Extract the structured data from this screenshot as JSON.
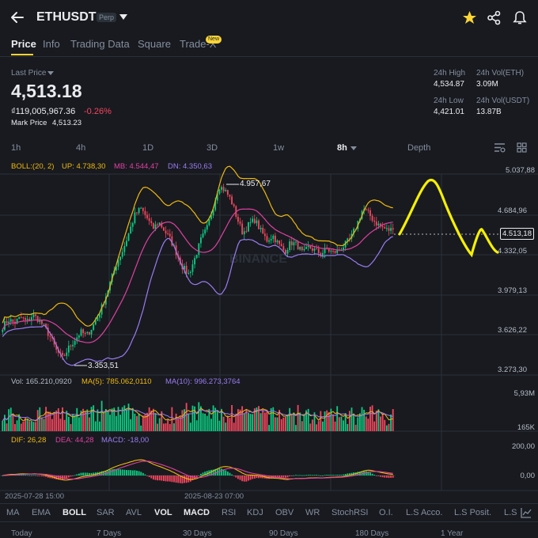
{
  "header": {
    "symbol": "ETHUSDT",
    "badge": "Perp"
  },
  "tabs": [
    "Price",
    "Info",
    "Trading Data",
    "Square",
    "Trade-X"
  ],
  "tab_badge": "New",
  "price_block": {
    "label": "Last Price",
    "last_price": "4,513.18",
    "converted": "₫119,005,967.36",
    "change": "-0.26%",
    "mark_label": "Mark Price",
    "mark_value": "4,513.23"
  },
  "stats": {
    "high_label": "24h High",
    "high": "4,534.87",
    "vol_eth_label": "24h Vol(ETH)",
    "vol_eth": "3.09M",
    "low_label": "24h Low",
    "low": "4,421.01",
    "vol_usdt_label": "24h Vol(USDT)",
    "vol_usdt": "13.87B"
  },
  "timeframes": [
    "1h",
    "4h",
    "1D",
    "3D",
    "1w",
    "8h",
    "Depth"
  ],
  "boll_legend": {
    "name": "BOLL:(20, 2)",
    "up": "UP: 4.738,30",
    "mb": "MB: 4.544,47",
    "dn": "DN: 4.350,63"
  },
  "price_axis": [
    "5.037,88",
    "4.684,96",
    "4.332,05",
    "3.979,13",
    "3.626,22",
    "3.273,30"
  ],
  "current_price_tag": "4.513,18",
  "annotations": {
    "high": "4.957,67",
    "low": "3.353,51"
  },
  "vol_legend": {
    "vol": "Vol: 165.210,0920",
    "ma5": "MA(5): 785.062,0110",
    "ma10": "MA(10): 996.273,3764"
  },
  "vol_axis": [
    "5,93M",
    "165K"
  ],
  "macd_legend": {
    "dif": "DIF: 26,28",
    "dea": "DEA: 44,28",
    "macd": "MACD: -18,00"
  },
  "macd_axis": [
    "200,00",
    "0,00"
  ],
  "date_labels": [
    "2025-07-28 15:00",
    "2025-08-23 07:00"
  ],
  "watermark": "BINANCE",
  "indicators": [
    "MA",
    "EMA",
    "BOLL",
    "SAR",
    "AVL",
    "VOL",
    "MACD",
    "RSI",
    "KDJ",
    "OBV",
    "WR",
    "StochRSI",
    "O.I.",
    "L.S Acco.",
    "L.S Posit.",
    "L.S"
  ],
  "periods": [
    "Today",
    "7 Days",
    "30 Days",
    "90 Days",
    "180 Days",
    "1 Year"
  ],
  "colors": {
    "up": "#0ecb81",
    "down": "#f6465d",
    "accent": "#fcd535",
    "boll_up": "#f0b90b",
    "boll_mb": "#e040a0",
    "boll_dn": "#9b7cf0",
    "drawing": "#f5f000"
  },
  "chart_data": {
    "type": "candlestick",
    "timeframe": "8h",
    "close_path": [
      3660,
      3720,
      3690,
      3740,
      3700,
      3760,
      3720,
      3650,
      3560,
      3440,
      3380,
      3470,
      3540,
      3610,
      3580,
      3660,
      3760,
      3900,
      4060,
      4220,
      4330,
      4480,
      4640,
      4700,
      4620,
      4520,
      4580,
      4500,
      4420,
      4300,
      4180,
      4120,
      4260,
      4420,
      4520,
      4700,
      4900,
      4860,
      4780,
      4620,
      4480,
      4560,
      4600,
      4500,
      4420,
      4460,
      4380,
      4320,
      4400,
      4380,
      4300,
      4360,
      4330,
      4300,
      4340,
      4310,
      4330,
      4380,
      4440,
      4560,
      4700,
      4650,
      4580,
      4540,
      4510,
      4513
    ],
    "ylim": [
      3273.3,
      5037.88
    ],
    "high": 4957.67,
    "low": 3353.51
  }
}
